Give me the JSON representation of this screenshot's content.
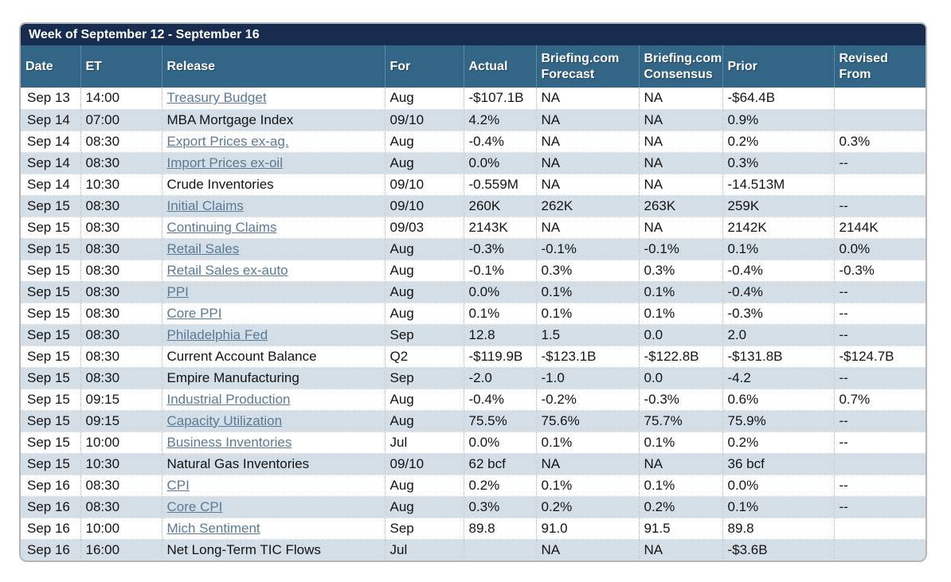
{
  "title": "Week of September 12 - September 16",
  "colors": {
    "title_bar_bg": "#172c4e",
    "header_bg": "#336587",
    "row_alt_bg": "#d3dee6",
    "link_color": "#5a7a96",
    "border_gray": "#b5b5b5"
  },
  "table": {
    "columns": [
      {
        "key": "date",
        "label": "Date"
      },
      {
        "key": "et",
        "label": "ET"
      },
      {
        "key": "release",
        "label": "Release"
      },
      {
        "key": "for",
        "label": "For"
      },
      {
        "key": "actual",
        "label": "Actual"
      },
      {
        "key": "forecast",
        "label": "Briefing.com\nForecast"
      },
      {
        "key": "consensus",
        "label": "Briefing.com\nConsensus"
      },
      {
        "key": "prior",
        "label": "Prior"
      },
      {
        "key": "revised",
        "label": "Revised\nFrom"
      }
    ],
    "rows": [
      {
        "date": "Sep 13",
        "et": "14:00",
        "release": "Treasury Budget",
        "link": true,
        "for": "Aug",
        "actual": "-$107.1B",
        "forecast": "NA",
        "consensus": "NA",
        "prior": "-$64.4B",
        "revised": ""
      },
      {
        "date": "Sep 14",
        "et": "07:00",
        "release": "MBA Mortgage Index",
        "link": false,
        "for": "09/10",
        "actual": "4.2%",
        "forecast": "NA",
        "consensus": "NA",
        "prior": "0.9%",
        "revised": ""
      },
      {
        "date": "Sep 14",
        "et": "08:30",
        "release": "Export Prices ex-ag.",
        "link": true,
        "for": "Aug",
        "actual": "-0.4%",
        "forecast": "NA",
        "consensus": "NA",
        "prior": "0.2%",
        "revised": "0.3%"
      },
      {
        "date": "Sep 14",
        "et": "08:30",
        "release": "Import Prices ex-oil",
        "link": true,
        "for": "Aug",
        "actual": "0.0%",
        "forecast": "NA",
        "consensus": "NA",
        "prior": "0.3%",
        "revised": "--"
      },
      {
        "date": "Sep 14",
        "et": "10:30",
        "release": "Crude Inventories",
        "link": false,
        "for": "09/10",
        "actual": "-0.559M",
        "forecast": "NA",
        "consensus": "NA",
        "prior": "-14.513M",
        "revised": ""
      },
      {
        "date": "Sep 15",
        "et": "08:30",
        "release": "Initial Claims",
        "link": true,
        "for": "09/10",
        "actual": "260K",
        "forecast": "262K",
        "consensus": "263K",
        "prior": "259K",
        "revised": "--"
      },
      {
        "date": "Sep 15",
        "et": "08:30",
        "release": "Continuing Claims",
        "link": true,
        "for": "09/03",
        "actual": "2143K",
        "forecast": "NA",
        "consensus": "NA",
        "prior": "2142K",
        "revised": "2144K"
      },
      {
        "date": "Sep 15",
        "et": "08:30",
        "release": "Retail Sales",
        "link": true,
        "for": "Aug",
        "actual": "-0.3%",
        "forecast": "-0.1%",
        "consensus": "-0.1%",
        "prior": "0.1%",
        "revised": "0.0%"
      },
      {
        "date": "Sep 15",
        "et": "08:30",
        "release": "Retail Sales ex-auto",
        "link": true,
        "for": "Aug",
        "actual": "-0.1%",
        "forecast": "0.3%",
        "consensus": "0.3%",
        "prior": "-0.4%",
        "revised": "-0.3%"
      },
      {
        "date": "Sep 15",
        "et": "08:30",
        "release": "PPI",
        "link": true,
        "for": "Aug",
        "actual": "0.0%",
        "forecast": "0.1%",
        "consensus": "0.1%",
        "prior": "-0.4%",
        "revised": "--"
      },
      {
        "date": "Sep 15",
        "et": "08:30",
        "release": "Core PPI",
        "link": true,
        "for": "Aug",
        "actual": "0.1%",
        "forecast": "0.1%",
        "consensus": "0.1%",
        "prior": "-0.3%",
        "revised": "--"
      },
      {
        "date": "Sep 15",
        "et": "08:30",
        "release": "Philadelphia Fed",
        "link": true,
        "for": "Sep",
        "actual": "12.8",
        "forecast": "1.5",
        "consensus": "0.0",
        "prior": "2.0",
        "revised": "--"
      },
      {
        "date": "Sep 15",
        "et": "08:30",
        "release": "Current Account Balance",
        "link": false,
        "for": "Q2",
        "actual": "-$119.9B",
        "forecast": "-$123.1B",
        "consensus": "-$122.8B",
        "prior": "-$131.8B",
        "revised": "-$124.7B"
      },
      {
        "date": "Sep 15",
        "et": "08:30",
        "release": "Empire Manufacturing",
        "link": false,
        "for": "Sep",
        "actual": "-2.0",
        "forecast": "-1.0",
        "consensus": "0.0",
        "prior": "-4.2",
        "revised": "--"
      },
      {
        "date": "Sep 15",
        "et": "09:15",
        "release": "Industrial Production",
        "link": true,
        "for": "Aug",
        "actual": "-0.4%",
        "forecast": "-0.2%",
        "consensus": "-0.3%",
        "prior": "0.6%",
        "revised": "0.7%"
      },
      {
        "date": "Sep 15",
        "et": "09:15",
        "release": "Capacity Utilization",
        "link": true,
        "for": "Aug",
        "actual": "75.5%",
        "forecast": "75.6%",
        "consensus": "75.7%",
        "prior": "75.9%",
        "revised": "--"
      },
      {
        "date": "Sep 15",
        "et": "10:00",
        "release": "Business Inventories",
        "link": true,
        "for": "Jul",
        "actual": "0.0%",
        "forecast": "0.1%",
        "consensus": "0.1%",
        "prior": "0.2%",
        "revised": "--"
      },
      {
        "date": "Sep 15",
        "et": "10:30",
        "release": "Natural Gas Inventories",
        "link": false,
        "for": "09/10",
        "actual": "62 bcf",
        "forecast": "NA",
        "consensus": "NA",
        "prior": "36 bcf",
        "revised": ""
      },
      {
        "date": "Sep 16",
        "et": "08:30",
        "release": "CPI",
        "link": true,
        "for": "Aug",
        "actual": "0.2%",
        "forecast": "0.1%",
        "consensus": "0.1%",
        "prior": "0.0%",
        "revised": "--"
      },
      {
        "date": "Sep 16",
        "et": "08:30",
        "release": "Core CPI",
        "link": true,
        "for": "Aug",
        "actual": "0.3%",
        "forecast": "0.2%",
        "consensus": "0.2%",
        "prior": "0.1%",
        "revised": "--"
      },
      {
        "date": "Sep 16",
        "et": "10:00",
        "release": "Mich Sentiment",
        "link": true,
        "for": "Sep",
        "actual": "89.8",
        "forecast": "91.0",
        "consensus": "91.5",
        "prior": "89.8",
        "revised": ""
      },
      {
        "date": "Sep 16",
        "et": "16:00",
        "release": "Net Long-Term TIC Flows",
        "link": false,
        "for": "Jul",
        "actual": "",
        "forecast": "NA",
        "consensus": "NA",
        "prior": "-$3.6B",
        "revised": ""
      }
    ]
  }
}
